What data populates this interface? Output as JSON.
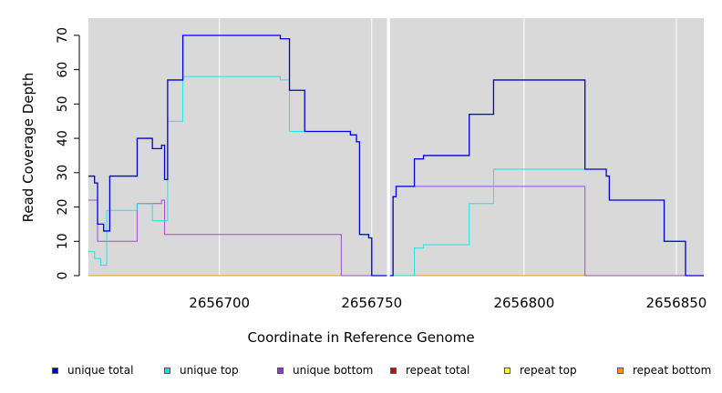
{
  "chart_data": {
    "type": "line",
    "xlabel": "Coordinate in Reference Genome",
    "ylabel": "Read Coverage Depth",
    "xlim": [
      2656657,
      2656859
    ],
    "ylim": [
      0,
      75
    ],
    "xticks": [
      2656700,
      2656750,
      2656800,
      2656850
    ],
    "xtick_labels": [
      "2656700",
      "2656750",
      "2656800",
      "2656850"
    ],
    "yticks": [
      0,
      10,
      20,
      30,
      40,
      50,
      60,
      70
    ],
    "ytick_labels": [
      "0",
      "10",
      "20",
      "30",
      "40",
      "50",
      "60",
      "70"
    ],
    "background": "#d9d9d9",
    "gap": [
      2656755,
      2656756
    ],
    "segments": [
      {
        "x_start": 2656657,
        "x_end": 2656755,
        "series": {
          "unique_total": [
            [
              2656657,
              29
            ],
            [
              2656659,
              29
            ],
            [
              2656659,
              27
            ],
            [
              2656660,
              27
            ],
            [
              2656660,
              15
            ],
            [
              2656662,
              15
            ],
            [
              2656662,
              13
            ],
            [
              2656664,
              13
            ],
            [
              2656664,
              29
            ],
            [
              2656673,
              29
            ],
            [
              2656673,
              40
            ],
            [
              2656678,
              40
            ],
            [
              2656678,
              37
            ],
            [
              2656681,
              37
            ],
            [
              2656681,
              38
            ],
            [
              2656682,
              38
            ],
            [
              2656682,
              28
            ],
            [
              2656683,
              28
            ],
            [
              2656683,
              57
            ],
            [
              2656688,
              57
            ],
            [
              2656688,
              70
            ],
            [
              2656720,
              70
            ],
            [
              2656720,
              69
            ],
            [
              2656723,
              69
            ],
            [
              2656723,
              54
            ],
            [
              2656728,
              54
            ],
            [
              2656728,
              42
            ],
            [
              2656743,
              42
            ],
            [
              2656743,
              41
            ],
            [
              2656745,
              41
            ],
            [
              2656745,
              39
            ],
            [
              2656746,
              39
            ],
            [
              2656746,
              12
            ],
            [
              2656749,
              12
            ],
            [
              2656749,
              11
            ],
            [
              2656750,
              11
            ],
            [
              2656750,
              0
            ],
            [
              2656755,
              0
            ]
          ],
          "unique_top": [
            [
              2656657,
              7
            ],
            [
              2656659,
              7
            ],
            [
              2656659,
              5
            ],
            [
              2656661,
              5
            ],
            [
              2656661,
              3
            ],
            [
              2656663,
              3
            ],
            [
              2656663,
              19
            ],
            [
              2656673,
              19
            ],
            [
              2656673,
              21
            ],
            [
              2656678,
              21
            ],
            [
              2656678,
              16
            ],
            [
              2656683,
              16
            ],
            [
              2656683,
              45
            ],
            [
              2656688,
              45
            ],
            [
              2656688,
              58
            ],
            [
              2656720,
              58
            ],
            [
              2656720,
              57
            ],
            [
              2656723,
              57
            ],
            [
              2656723,
              42
            ],
            [
              2656743,
              42
            ],
            [
              2656743,
              41
            ],
            [
              2656745,
              41
            ],
            [
              2656745,
              39
            ],
            [
              2656746,
              39
            ],
            [
              2656746,
              12
            ],
            [
              2656749,
              12
            ],
            [
              2656749,
              11
            ],
            [
              2656750,
              11
            ],
            [
              2656750,
              0
            ],
            [
              2656755,
              0
            ]
          ],
          "unique_bottom": [
            [
              2656657,
              22
            ],
            [
              2656660,
              22
            ],
            [
              2656660,
              10
            ],
            [
              2656673,
              10
            ],
            [
              2656673,
              21
            ],
            [
              2656681,
              21
            ],
            [
              2656681,
              22
            ],
            [
              2656682,
              22
            ],
            [
              2656682,
              12
            ],
            [
              2656740,
              12
            ],
            [
              2656740,
              0
            ],
            [
              2656755,
              0
            ]
          ],
          "repeat_total": [
            [
              2656657,
              0
            ],
            [
              2656755,
              0
            ]
          ],
          "repeat_top": [
            [
              2656657,
              0
            ],
            [
              2656755,
              0
            ]
          ],
          "repeat_bottom": [
            [
              2656657,
              0
            ],
            [
              2656755,
              0
            ]
          ]
        }
      },
      {
        "x_start": 2656756,
        "x_end": 2656859,
        "series": {
          "unique_total": [
            [
              2656756,
              0
            ],
            [
              2656757,
              0
            ],
            [
              2656757,
              23
            ],
            [
              2656758,
              23
            ],
            [
              2656758,
              26
            ],
            [
              2656764,
              26
            ],
            [
              2656764,
              34
            ],
            [
              2656767,
              34
            ],
            [
              2656767,
              35
            ],
            [
              2656782,
              35
            ],
            [
              2656782,
              47
            ],
            [
              2656790,
              47
            ],
            [
              2656790,
              57
            ],
            [
              2656820,
              57
            ],
            [
              2656820,
              31
            ],
            [
              2656827,
              31
            ],
            [
              2656827,
              29
            ],
            [
              2656828,
              29
            ],
            [
              2656828,
              22
            ],
            [
              2656846,
              22
            ],
            [
              2656846,
              10
            ],
            [
              2656853,
              10
            ],
            [
              2656853,
              0
            ],
            [
              2656859,
              0
            ]
          ],
          "unique_top": [
            [
              2656756,
              0
            ],
            [
              2656764,
              0
            ],
            [
              2656764,
              8
            ],
            [
              2656767,
              8
            ],
            [
              2656767,
              9
            ],
            [
              2656782,
              9
            ],
            [
              2656782,
              21
            ],
            [
              2656790,
              21
            ],
            [
              2656790,
              31
            ],
            [
              2656827,
              31
            ],
            [
              2656827,
              29
            ],
            [
              2656828,
              29
            ],
            [
              2656828,
              22
            ],
            [
              2656846,
              22
            ],
            [
              2656846,
              10
            ],
            [
              2656853,
              10
            ],
            [
              2656853,
              0
            ],
            [
              2656859,
              0
            ]
          ],
          "unique_bottom": [
            [
              2656756,
              0
            ],
            [
              2656757,
              0
            ],
            [
              2656757,
              23
            ],
            [
              2656758,
              23
            ],
            [
              2656758,
              26
            ],
            [
              2656820,
              26
            ],
            [
              2656820,
              0
            ],
            [
              2656859,
              0
            ]
          ],
          "repeat_total": [
            [
              2656756,
              0
            ],
            [
              2656859,
              0
            ]
          ],
          "repeat_top": [
            [
              2656756,
              0
            ],
            [
              2656859,
              0
            ]
          ],
          "repeat_bottom": [
            [
              2656756,
              0
            ],
            [
              2656859,
              0
            ]
          ]
        }
      }
    ],
    "legend": {
      "placement": "bottom",
      "entries": [
        {
          "key": "unique_total",
          "label": "unique total",
          "color": "#0000dd"
        },
        {
          "key": "unique_top",
          "label": "unique top",
          "color": "#00e5e5"
        },
        {
          "key": "unique_bottom",
          "label": "unique bottom",
          "color": "#9933dd"
        },
        {
          "key": "repeat_total",
          "label": "repeat total",
          "color": "#dd0000"
        },
        {
          "key": "repeat_top",
          "label": "repeat top",
          "color": "#ffff00"
        },
        {
          "key": "repeat_bottom",
          "label": "repeat bottom",
          "color": "#ff9900"
        }
      ]
    }
  }
}
